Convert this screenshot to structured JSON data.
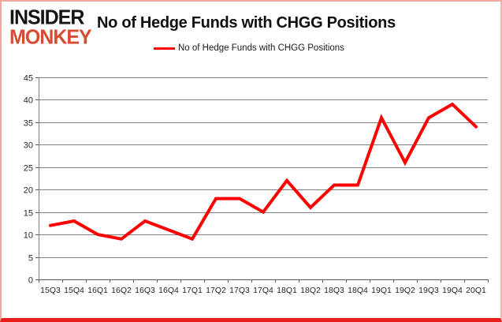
{
  "brand": {
    "line1": "INSIDER",
    "line2": "MONKEY",
    "line1_color": "#161412",
    "line2_color": "#d84b32"
  },
  "header": {
    "title": "No of Hedge Funds with CHGG Positions"
  },
  "legend": {
    "label": "No of Hedge Funds with CHGG Positions",
    "swatch_color": "#ff0000"
  },
  "chart_data": {
    "type": "line",
    "title": "No of Hedge Funds with CHGG Positions",
    "categories": [
      "15Q3",
      "15Q4",
      "16Q1",
      "16Q2",
      "16Q3",
      "16Q4",
      "17Q1",
      "17Q2",
      "17Q3",
      "17Q4",
      "18Q1",
      "18Q2",
      "18Q3",
      "18Q4",
      "19Q1",
      "19Q2",
      "19Q3",
      "19Q4",
      "20Q1"
    ],
    "series": [
      {
        "name": "No of Hedge Funds with CHGG Positions",
        "color": "#ff0000",
        "values": [
          12,
          13,
          10,
          9,
          13,
          11,
          9,
          18,
          18,
          15,
          22,
          16,
          21,
          21,
          36,
          26,
          36,
          39,
          34
        ]
      }
    ],
    "xlabel": "",
    "ylabel": "",
    "ylim": [
      0,
      45
    ],
    "ytick_step": 5,
    "grid": true,
    "legend_position": "top",
    "gridline_color": "#808080",
    "axis_color": "#595959",
    "tick_label_color": "#262626"
  }
}
